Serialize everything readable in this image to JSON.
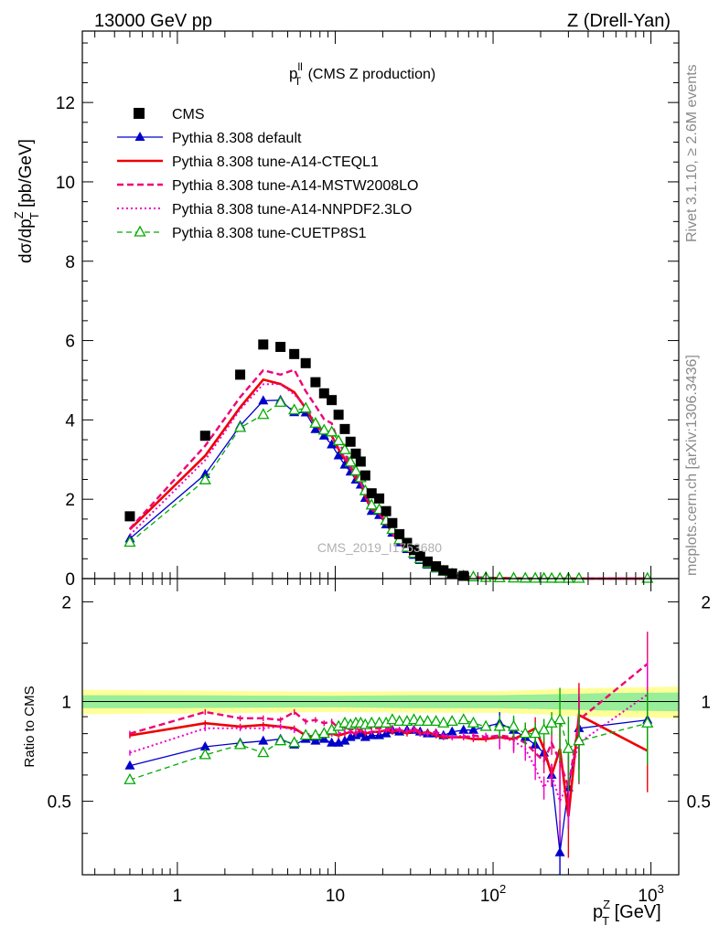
{
  "header": {
    "energy_label": "13000 GeV pp",
    "process_label": "Z (Drell-Yan)"
  },
  "side_labels": {
    "rivet": "Rivet 3.1.10, ≥ 2.6M events",
    "mcplots": "mcplots.cern.ch [arXiv:1306.3436]"
  },
  "chart_data": {
    "type": "scatter",
    "title_main": "p",
    "title_sup": "ll",
    "title_sub": "T",
    "title_rest": " (CMS Z production)",
    "ylabel": "dσ/dp",
    "ylabel_sup": "Z",
    "ylabel_sub": "T",
    "ylabel_rest": " [pb/GeV]",
    "xlabel": "p",
    "xlabel_sup": "Z",
    "xlabel_sub": "T",
    "xlabel_rest": " [GeV]",
    "ratio_ylabel": "Ratio to CMS",
    "watermark": "CMS_2019_I1753680",
    "x_scale": "log",
    "xlim": [
      0.25,
      1500
    ],
    "ylim_main": [
      0,
      13.8
    ],
    "ylim_ratio": [
      0.3,
      2.35
    ],
    "main_yticks": [
      0,
      2,
      4,
      6,
      8,
      10,
      12
    ],
    "ratio_yticks": [
      0.5,
      1,
      2
    ],
    "x_tick_labels": [
      {
        "base": "1",
        "exp": ""
      },
      {
        "base": "10",
        "exp": ""
      },
      {
        "base": "10",
        "exp": "2"
      },
      {
        "base": "10",
        "exp": "3"
      }
    ],
    "legend_position": "top-left",
    "x": [
      0.5,
      1.5,
      2.5,
      3.5,
      4.5,
      5.5,
      6.5,
      7.5,
      8.5,
      9.5,
      10.5,
      11.5,
      12.5,
      13.5,
      14.5,
      15.5,
      17,
      19,
      21,
      23,
      25.5,
      28.5,
      31.5,
      34.5,
      38.5,
      43.5,
      48.5,
      55,
      65,
      75,
      90,
      110,
      135,
      160,
      185,
      210,
      235,
      265,
      300,
      350,
      950
    ],
    "data": [
      1.57,
      3.6,
      5.14,
      5.9,
      5.84,
      5.66,
      5.43,
      4.95,
      4.67,
      4.5,
      4.13,
      3.77,
      3.45,
      3.15,
      2.95,
      2.6,
      2.15,
      2.02,
      1.7,
      1.4,
      1.12,
      0.9,
      0.72,
      0.57,
      0.43,
      0.31,
      0.21,
      0.13,
      0.07,
      0.045,
      0.028,
      0.018,
      0.01,
      0.006,
      0.004,
      0.003,
      0.002,
      0.0015,
      0.001,
      0.0005,
      5e-05
    ],
    "data_band": {
      "x": [
        0.25,
        1,
        3,
        10,
        30,
        100,
        200,
        300,
        500,
        1500
      ],
      "inner": [
        0.045,
        0.045,
        0.042,
        0.04,
        0.045,
        0.045,
        0.05,
        0.055,
        0.06,
        0.065
      ],
      "outer": [
        0.085,
        0.08,
        0.075,
        0.07,
        0.075,
        0.075,
        0.085,
        0.095,
        0.1,
        0.11
      ]
    },
    "series": [
      {
        "name": "CMS",
        "color": "#000000",
        "marker": "square",
        "kind": "data"
      },
      {
        "name": "Pythia 8.308 default",
        "color": "#0000cc",
        "marker": "triangle",
        "dash": "",
        "width": 1.3,
        "ratio": [
          0.64,
          0.73,
          0.75,
          0.76,
          0.77,
          0.74,
          0.77,
          0.76,
          0.77,
          0.75,
          0.75,
          0.76,
          0.78,
          0.79,
          0.8,
          0.78,
          0.79,
          0.79,
          0.8,
          0.82,
          0.81,
          0.82,
          0.82,
          0.81,
          0.8,
          0.8,
          0.79,
          0.81,
          0.82,
          0.82,
          0.84,
          0.86,
          0.82,
          0.78,
          0.74,
          0.7,
          0.6,
          0.35,
          0.55,
          0.83,
          0.88
        ]
      },
      {
        "name": "Pythia 8.308 tune-A14-CTEQL1",
        "color": "#ee0000",
        "marker": "none",
        "dash": "",
        "width": 2.6,
        "ratio": [
          0.79,
          0.86,
          0.84,
          0.85,
          0.84,
          0.83,
          0.79,
          0.78,
          0.79,
          0.8,
          0.79,
          0.8,
          0.81,
          0.8,
          0.82,
          0.8,
          0.81,
          0.81,
          0.82,
          0.81,
          0.82,
          0.8,
          0.82,
          0.8,
          0.81,
          0.79,
          0.78,
          0.78,
          0.78,
          0.77,
          0.77,
          0.78,
          0.77,
          0.8,
          0.83,
          0.72,
          0.6,
          0.72,
          0.45,
          0.91,
          0.71
        ]
      },
      {
        "name": "Pythia 8.308 tune-A14-MSTW2008LO",
        "color": "#ee0077",
        "marker": "none",
        "dash": "7,4",
        "width": 2.4,
        "ratio": [
          0.8,
          0.93,
          0.89,
          0.89,
          0.88,
          0.93,
          0.87,
          0.88,
          0.86,
          0.87,
          0.83,
          0.84,
          0.82,
          0.83,
          0.82,
          0.84,
          0.83,
          0.83,
          0.83,
          0.83,
          0.82,
          0.81,
          0.83,
          0.81,
          0.8,
          0.81,
          0.79,
          0.78,
          0.78,
          0.79,
          0.78,
          0.79,
          0.78,
          0.75,
          0.7,
          0.66,
          0.75,
          0.66,
          0.55,
          0.88,
          1.3
        ]
      },
      {
        "name": "Pythia 8.308 tune-A14-NNPDF2.3LO",
        "color": "#ee00cc",
        "marker": "none",
        "dash": "2,3",
        "width": 2.0,
        "ratio": [
          0.7,
          0.83,
          0.83,
          0.83,
          0.84,
          0.82,
          0.8,
          0.79,
          0.79,
          0.8,
          0.8,
          0.81,
          0.81,
          0.8,
          0.82,
          0.81,
          0.81,
          0.81,
          0.82,
          0.82,
          0.82,
          0.82,
          0.82,
          0.8,
          0.8,
          0.8,
          0.79,
          0.78,
          0.79,
          0.78,
          0.79,
          0.78,
          0.76,
          0.72,
          0.63,
          0.55,
          0.6,
          0.5,
          0.57,
          0.75,
          1.05
        ]
      },
      {
        "name": "Pythia 8.308 tune-CUETP8S1",
        "color": "#00aa00",
        "marker": "open-triangle",
        "dash": "6,4",
        "width": 1.3,
        "ratio": [
          0.58,
          0.69,
          0.74,
          0.7,
          0.76,
          0.75,
          0.79,
          0.79,
          0.8,
          0.82,
          0.84,
          0.86,
          0.85,
          0.86,
          0.86,
          0.85,
          0.86,
          0.86,
          0.86,
          0.88,
          0.87,
          0.87,
          0.88,
          0.87,
          0.87,
          0.87,
          0.86,
          0.87,
          0.88,
          0.86,
          0.84,
          0.84,
          0.84,
          0.8,
          0.8,
          0.82,
          0.86,
          0.88,
          0.72,
          0.76,
          0.86
        ]
      }
    ]
  }
}
